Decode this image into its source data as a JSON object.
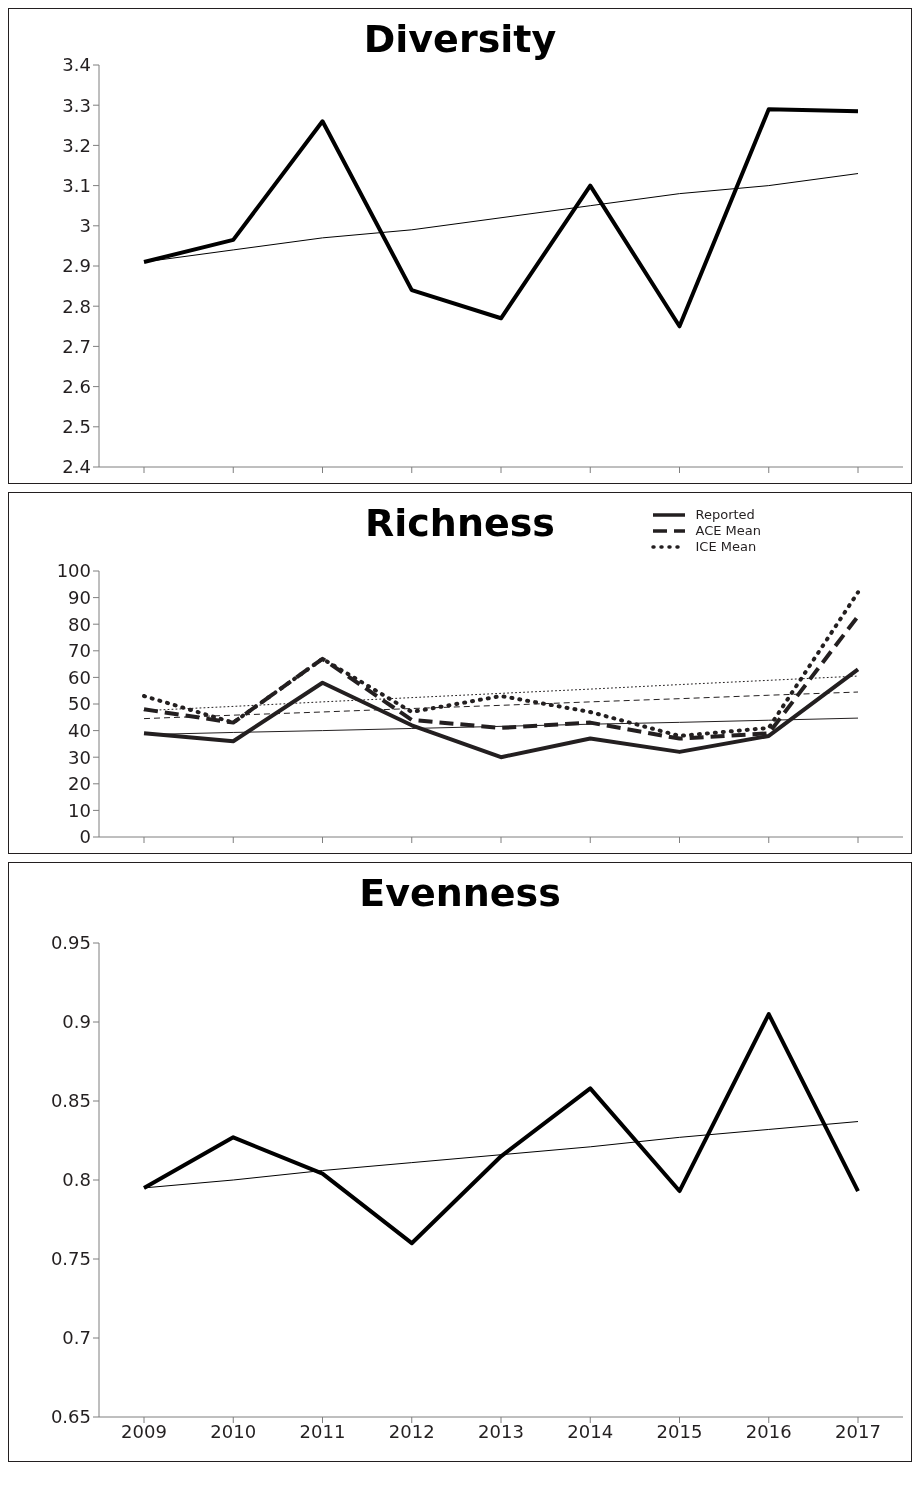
{
  "chart_data": [
    {
      "type": "line",
      "title": "Diversity",
      "categories": [
        "2009",
        "2010",
        "2011",
        "2012",
        "2013",
        "2014",
        "2015",
        "2016",
        "2017"
      ],
      "tick_labels": "y",
      "ylim": [
        2.4,
        3.4
      ],
      "yticks": [
        2.4,
        2.5,
        2.6,
        2.7,
        2.8,
        2.9,
        3,
        3.1,
        3.2,
        3.3,
        3.4
      ],
      "grid": false,
      "marker": "none",
      "series": [
        {
          "color": "#000000",
          "line_style": "solid",
          "values": [
            2.91,
            2.965,
            3.26,
            2.84,
            2.77,
            3.1,
            2.75,
            3.29,
            3.285
          ]
        },
        {
          "color": "#000000",
          "line_style": "solid",
          "values": [
            2.91,
            2.94,
            2.97,
            2.99,
            3.02,
            3.05,
            3.08,
            3.1,
            3.13
          ]
        }
      ]
    },
    {
      "type": "line",
      "title": "Richness",
      "categories": [
        "2009",
        "2010",
        "2011",
        "2012",
        "2013",
        "2014",
        "2015",
        "2016",
        "2017"
      ],
      "tick_labels": "y",
      "ylim": [
        0,
        100
      ],
      "yticks": [
        0,
        10,
        20,
        30,
        40,
        50,
        60,
        70,
        80,
        90,
        100
      ],
      "grid": false,
      "marker": "none",
      "legend": "top right",
      "series": [
        {
          "name": "Reported",
          "color": "#231f20",
          "line_style": "solid",
          "values": [
            39,
            36,
            58,
            42,
            30,
            37,
            32,
            38,
            63
          ]
        },
        {
          "name": "ACE Mean",
          "color": "#231f20",
          "line_style": "dashed",
          "values": [
            48,
            43,
            67,
            44,
            41,
            43,
            37,
            39,
            83
          ]
        },
        {
          "name": "ICE Mean",
          "color": "#231f20",
          "line_style": "dotted",
          "values": [
            53,
            43,
            67,
            47,
            53,
            47,
            38,
            41,
            92
          ]
        },
        {
          "color": "#231f20",
          "line_style": "solid",
          "values": [
            38.5,
            39.3,
            40,
            40.8,
            41.6,
            42.4,
            43.1,
            43.9,
            44.7
          ]
        },
        {
          "color": "#231f20",
          "line_style": "dashed",
          "values": [
            44.5,
            45.8,
            47,
            48.3,
            49.5,
            50.8,
            52,
            53.3,
            54.5
          ]
        },
        {
          "color": "#231f20",
          "line_style": "dotted",
          "values": [
            47.5,
            49.1,
            50.8,
            52.4,
            54,
            55.6,
            57.3,
            58.9,
            60.5
          ]
        }
      ]
    },
    {
      "type": "line",
      "title": "Evenness",
      "categories": [
        "2009",
        "2010",
        "2011",
        "2012",
        "2013",
        "2014",
        "2015",
        "2016",
        "2017"
      ],
      "ylim": [
        0.65,
        0.95
      ],
      "yticks": [
        0.65,
        0.7,
        0.75,
        0.8,
        0.85,
        0.9,
        0.95
      ],
      "grid": false,
      "marker": "none",
      "series": [
        {
          "color": "#000000",
          "line_style": "solid",
          "values": [
            0.795,
            0.827,
            0.804,
            0.76,
            0.815,
            0.858,
            0.793,
            0.905,
            0.793
          ]
        },
        {
          "color": "#000000",
          "line_style": "solid",
          "values": [
            0.795,
            0.8,
            0.806,
            0.811,
            0.816,
            0.821,
            0.827,
            0.832,
            0.837
          ]
        }
      ]
    }
  ]
}
